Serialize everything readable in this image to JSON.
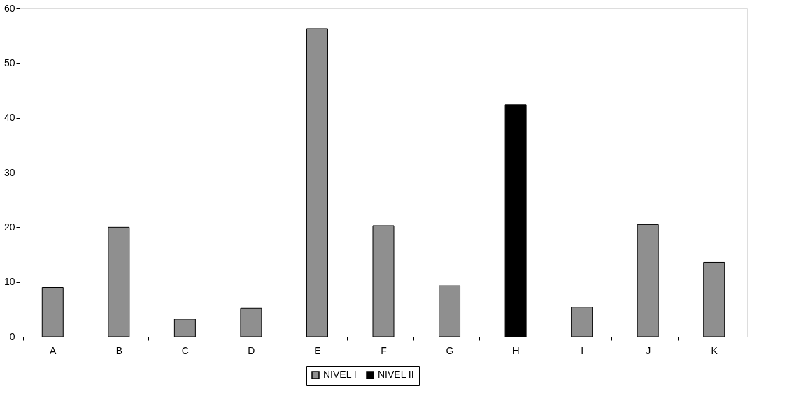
{
  "chart_data": {
    "type": "bar",
    "stacked": true,
    "categories": [
      "A",
      "B",
      "C",
      "D",
      "E",
      "F",
      "G",
      "H",
      "I",
      "J",
      "K"
    ],
    "series": [
      {
        "name": "NIVEL I",
        "color": "#8f8f8f",
        "values": [
          9,
          20,
          3.2,
          5.2,
          56.3,
          20.3,
          9.3,
          null,
          5.4,
          20.5,
          13.6
        ]
      },
      {
        "name": "NIVEL II",
        "color": "#000000",
        "values": [
          null,
          null,
          null,
          null,
          null,
          null,
          null,
          42.4,
          null,
          null,
          null
        ]
      }
    ],
    "ylim": [
      0,
      60
    ],
    "yticks": [
      0,
      10,
      20,
      30,
      40,
      50,
      60
    ],
    "grid": false,
    "legend": "bottom"
  }
}
